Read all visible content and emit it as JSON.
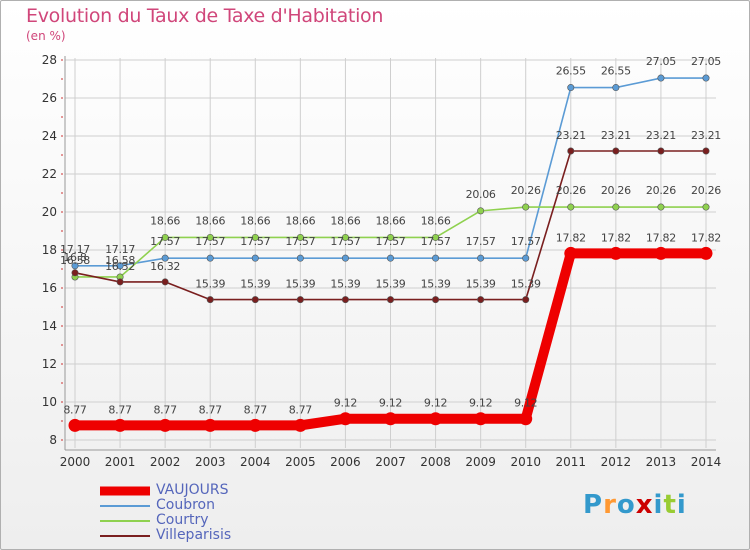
{
  "header": {
    "title": "Evolution du Taux de Taxe d'Habitation",
    "unit": "(en %)"
  },
  "colors": {
    "title": "#d0467a",
    "grid": "#cfcfcf",
    "axis": "#999999",
    "legend_text": "#5566bb"
  },
  "logo": {
    "letters": [
      {
        "ch": "P",
        "color": "#3399cc"
      },
      {
        "ch": "r",
        "color": "#ff9933"
      },
      {
        "ch": "o",
        "color": "#3399cc"
      },
      {
        "ch": "x",
        "color": "#cc0000"
      },
      {
        "ch": "i",
        "color": "#3399cc"
      },
      {
        "ch": "t",
        "color": "#99cc33"
      },
      {
        "ch": "i",
        "color": "#3399cc"
      }
    ]
  },
  "chart_data": {
    "type": "line",
    "title": "Evolution du Taux de Taxe d'Habitation",
    "ylabel": "(en %)",
    "xlabel": "",
    "x": [
      "2000",
      "2001",
      "2002",
      "2003",
      "2004",
      "2005",
      "2006",
      "2007",
      "2008",
      "2009",
      "2010",
      "2011",
      "2012",
      "2013",
      "2014"
    ],
    "ylim": [
      8,
      28
    ],
    "yticks": [
      "8",
      "10",
      "12",
      "14",
      "16",
      "18",
      "20",
      "22",
      "24",
      "26",
      "28"
    ],
    "grid": true,
    "legend_position": "bottom-left",
    "series": [
      {
        "name": "VAUJOURS",
        "color": "#ee0000",
        "values": [
          8.77,
          8.77,
          8.77,
          8.77,
          8.77,
          8.77,
          9.12,
          9.12,
          9.12,
          9.12,
          9.12,
          17.82,
          17.82,
          17.82,
          17.82
        ],
        "labels": [
          "8.77",
          "8.77",
          "8.77",
          "8.77",
          "8.77",
          "8.77",
          "9.12",
          "9.12",
          "9.12",
          "9.12",
          "9.12",
          "17.82",
          "17.82",
          "17.82",
          "17.82"
        ]
      },
      {
        "name": "Coubron",
        "color": "#5b9bd5",
        "values": [
          17.17,
          17.17,
          17.57,
          17.57,
          17.57,
          17.57,
          17.57,
          17.57,
          17.57,
          17.57,
          17.57,
          26.55,
          26.55,
          27.05,
          27.05
        ],
        "labels": [
          "17.17",
          "17.17",
          "17.57",
          "17.57",
          "17.57",
          "17.57",
          "17.57",
          "17.57",
          "17.57",
          "17.57",
          "17.57",
          "26.55",
          "26.55",
          "27.05",
          "27.05"
        ]
      },
      {
        "name": "Courtry",
        "color": "#8fd14f",
        "values": [
          16.58,
          16.58,
          18.66,
          18.66,
          18.66,
          18.66,
          18.66,
          18.66,
          18.66,
          20.06,
          20.26,
          20.26,
          20.26,
          20.26,
          20.26
        ],
        "labels": [
          "16.58",
          "16.58",
          "18.66",
          "18.66",
          "18.66",
          "18.66",
          "18.66",
          "18.66",
          "18.66",
          "20.06",
          "20.26",
          "20.26",
          "20.26",
          "20.26",
          "20.26"
        ]
      },
      {
        "name": "Villeparisis",
        "color": "#7a1f1f",
        "values": [
          16.8,
          16.32,
          16.32,
          15.39,
          15.39,
          15.39,
          15.39,
          15.39,
          15.39,
          15.39,
          15.39,
          23.21,
          23.21,
          23.21,
          23.21
        ],
        "labels": [
          "16.8",
          "16.32",
          "16.32",
          "15.39",
          "15.39",
          "15.39",
          "15.39",
          "15.39",
          "15.39",
          "15.39",
          "15.39",
          "23.21",
          "23.21",
          "23.21",
          "23.21"
        ]
      }
    ]
  }
}
